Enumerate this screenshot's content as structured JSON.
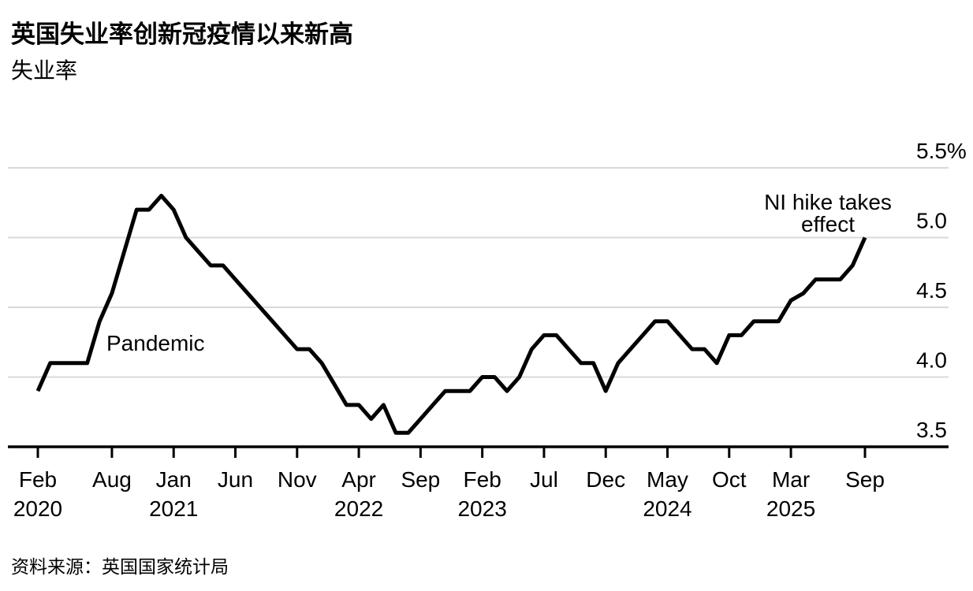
{
  "chart_data": {
    "type": "line",
    "title": "英国失业率创新冠疫情以来新高",
    "subtitle": "失业率",
    "source": "资料来源：英国国家统计局",
    "annotations": {
      "pandemic": "Pandemic",
      "ni_hike": [
        "NI hike takes",
        "effect"
      ]
    },
    "y_axis": {
      "min": 3.5,
      "max": 5.5,
      "ticks": [
        3.5,
        4.0,
        4.5,
        5.0,
        5.5
      ],
      "unit": "%",
      "grid": true,
      "labels_position": "right"
    },
    "x_axis": {
      "start": "Feb 2020",
      "end": "Sep 2025",
      "frequency": "monthly",
      "ticks": [
        {
          "m": 0,
          "label": "Feb",
          "year": "2020"
        },
        {
          "m": 6,
          "label": "Aug"
        },
        {
          "m": 11,
          "label": "Jan",
          "year": "2021"
        },
        {
          "m": 16,
          "label": "Jun"
        },
        {
          "m": 21,
          "label": "Nov"
        },
        {
          "m": 26,
          "label": "Apr",
          "year": "2022"
        },
        {
          "m": 31,
          "label": "Sep"
        },
        {
          "m": 36,
          "label": "Feb",
          "year": "2023"
        },
        {
          "m": 41,
          "label": "Jul"
        },
        {
          "m": 46,
          "label": "Dec"
        },
        {
          "m": 51,
          "label": "May",
          "year": "2024"
        },
        {
          "m": 56,
          "label": "Oct"
        },
        {
          "m": 61,
          "label": "Mar",
          "year": "2025"
        },
        {
          "m": 67,
          "label": "Sep"
        }
      ]
    },
    "series": [
      {
        "name": "失业率",
        "color": "#000000",
        "points": [
          {
            "d": "Feb 2020",
            "v": 3.9
          },
          {
            "d": "Mar 2020",
            "v": 4.1
          },
          {
            "d": "Apr 2020",
            "v": 4.1
          },
          {
            "d": "May 2020",
            "v": 4.1
          },
          {
            "d": "Jun 2020",
            "v": 4.1
          },
          {
            "d": "Jul 2020",
            "v": 4.4
          },
          {
            "d": "Aug 2020",
            "v": 4.6
          },
          {
            "d": "Sep 2020",
            "v": 4.9
          },
          {
            "d": "Oct 2020",
            "v": 5.2
          },
          {
            "d": "Nov 2020",
            "v": 5.2
          },
          {
            "d": "Dec 2020",
            "v": 5.3
          },
          {
            "d": "Jan 2021",
            "v": 5.2
          },
          {
            "d": "Feb 2021",
            "v": 5.0
          },
          {
            "d": "Mar 2021",
            "v": 4.9
          },
          {
            "d": "Apr 2021",
            "v": 4.8
          },
          {
            "d": "May 2021",
            "v": 4.8
          },
          {
            "d": "Jun 2021",
            "v": 4.7
          },
          {
            "d": "Jul 2021",
            "v": 4.6
          },
          {
            "d": "Aug 2021",
            "v": 4.5
          },
          {
            "d": "Sep 2021",
            "v": 4.4
          },
          {
            "d": "Oct 2021",
            "v": 4.3
          },
          {
            "d": "Nov 2021",
            "v": 4.2
          },
          {
            "d": "Dec 2021",
            "v": 4.2
          },
          {
            "d": "Jan 2022",
            "v": 4.1
          },
          {
            "d": "Feb 2022",
            "v": 3.95
          },
          {
            "d": "Mar 2022",
            "v": 3.8
          },
          {
            "d": "Apr 2022",
            "v": 3.8
          },
          {
            "d": "May 2022",
            "v": 3.7
          },
          {
            "d": "Jun 2022",
            "v": 3.8
          },
          {
            "d": "Jul 2022",
            "v": 3.6
          },
          {
            "d": "Aug 2022",
            "v": 3.6
          },
          {
            "d": "Sep 2022",
            "v": 3.7
          },
          {
            "d": "Oct 2022",
            "v": 3.8
          },
          {
            "d": "Nov 2022",
            "v": 3.9
          },
          {
            "d": "Dec 2022",
            "v": 3.9
          },
          {
            "d": "Jan 2023",
            "v": 3.9
          },
          {
            "d": "Feb 2023",
            "v": 4.0
          },
          {
            "d": "Mar 2023",
            "v": 4.0
          },
          {
            "d": "Apr 2023",
            "v": 3.9
          },
          {
            "d": "May 2023",
            "v": 4.0
          },
          {
            "d": "Jun 2023",
            "v": 4.2
          },
          {
            "d": "Jul 2023",
            "v": 4.3
          },
          {
            "d": "Aug 2023",
            "v": 4.3
          },
          {
            "d": "Sep 2023",
            "v": 4.2
          },
          {
            "d": "Oct 2023",
            "v": 4.1
          },
          {
            "d": "Nov 2023",
            "v": 4.1
          },
          {
            "d": "Dec 2023",
            "v": 3.9
          },
          {
            "d": "Jan 2024",
            "v": 4.1
          },
          {
            "d": "Feb 2024",
            "v": 4.2
          },
          {
            "d": "Mar 2024",
            "v": 4.3
          },
          {
            "d": "Apr 2024",
            "v": 4.4
          },
          {
            "d": "May 2024",
            "v": 4.4
          },
          {
            "d": "Jun 2024",
            "v": 4.3
          },
          {
            "d": "Jul 2024",
            "v": 4.2
          },
          {
            "d": "Aug 2024",
            "v": 4.2
          },
          {
            "d": "Sep 2024",
            "v": 4.1
          },
          {
            "d": "Oct 2024",
            "v": 4.3
          },
          {
            "d": "Nov 2024",
            "v": 4.3
          },
          {
            "d": "Dec 2024",
            "v": 4.4
          },
          {
            "d": "Jan 2025",
            "v": 4.4
          },
          {
            "d": "Feb 2025",
            "v": 4.4
          },
          {
            "d": "Mar 2025",
            "v": 4.55
          },
          {
            "d": "Apr 2025",
            "v": 4.6
          },
          {
            "d": "May 2025",
            "v": 4.7
          },
          {
            "d": "Jun 2025",
            "v": 4.7
          },
          {
            "d": "Jul 2025",
            "v": 4.7
          },
          {
            "d": "Aug 2025",
            "v": 4.8
          },
          {
            "d": "Sep 2025",
            "v": 5.0
          }
        ]
      }
    ]
  }
}
